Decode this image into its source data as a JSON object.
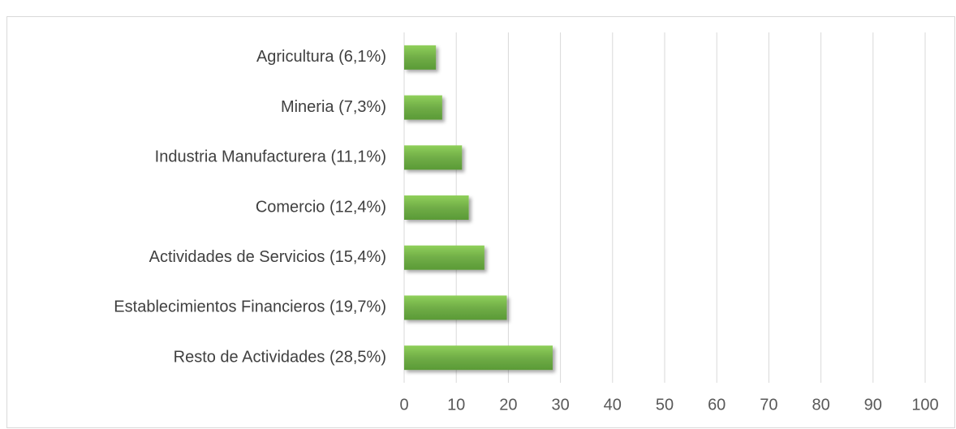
{
  "chart_data": {
    "type": "barh",
    "categories": [
      "Agricultura (6,1%)",
      "Mineria (7,3%)",
      "Industria Manufacturera (11,1%)",
      "Comercio (12,4%)",
      "Actividades de Servicios (15,4%)",
      "Establecimientos Financieros (19,7%)",
      "Resto de Actividades (28,5%)"
    ],
    "values": [
      6.1,
      7.3,
      11.1,
      12.4,
      15.4,
      19.7,
      28.5
    ],
    "color": "#70ad47",
    "xlim": [
      0,
      100
    ],
    "xticks": [
      0,
      10,
      20,
      30,
      40,
      50,
      60,
      70,
      80,
      90,
      100
    ],
    "grid": true
  }
}
